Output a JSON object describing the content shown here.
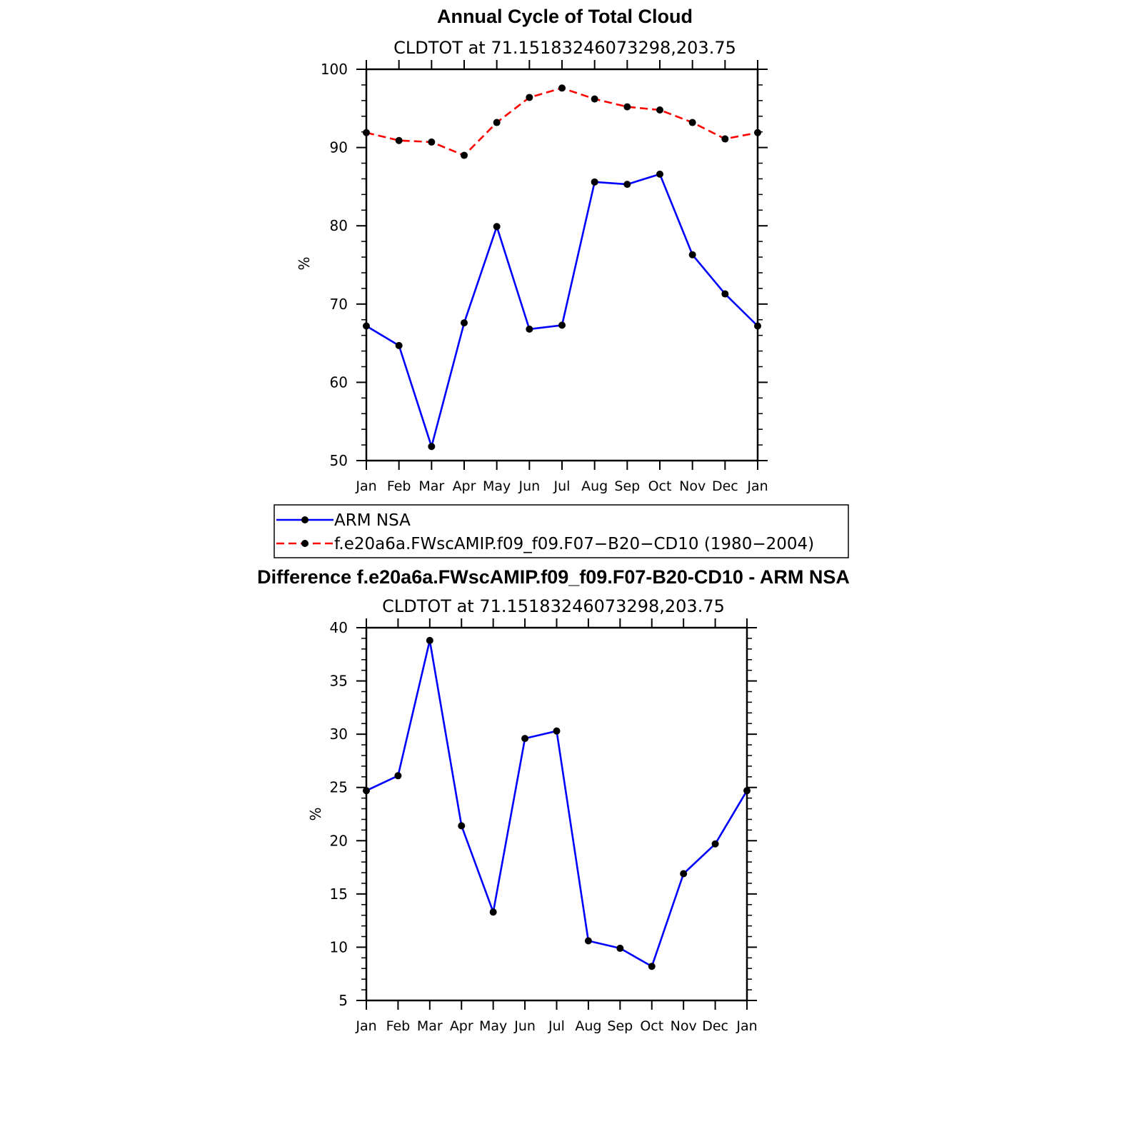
{
  "chart_data": [
    {
      "type": "line",
      "title": "Annual Cycle of Total Cloud",
      "subtitle": "CLDTOT at 71.15183246073298,203.75",
      "xlabel": "",
      "ylabel": "%",
      "ylim": [
        50,
        100
      ],
      "yticks": [
        "50",
        "60",
        "70",
        "80",
        "90",
        "100"
      ],
      "categories": [
        "Jan",
        "Feb",
        "Mar",
        "Apr",
        "May",
        "Jun",
        "Jul",
        "Aug",
        "Sep",
        "Oct",
        "Nov",
        "Dec",
        "Jan"
      ],
      "series": [
        {
          "name": "ARM NSA",
          "color": "#0000ff",
          "style": "solid",
          "values": [
            67.2,
            64.7,
            51.8,
            67.6,
            79.9,
            66.8,
            67.3,
            85.6,
            85.3,
            86.6,
            76.3,
            71.3,
            67.2
          ]
        },
        {
          "name": "f.e20a6a.FWscAMIP.f09_f09.F07-B20-CD10 (1980-2004)",
          "color": "#ff0000",
          "style": "dashed",
          "values": [
            91.9,
            90.9,
            90.7,
            89.0,
            93.2,
            96.4,
            97.6,
            96.2,
            95.2,
            94.8,
            93.2,
            91.1,
            91.9
          ]
        }
      ],
      "legend": {
        "position": "bottom",
        "entries": [
          "ARM NSA",
          "f.e20a6a.FWscAMIP.f09_f09.F07−B20−CD10 (1980−2004)"
        ]
      }
    },
    {
      "type": "line",
      "title": "Difference f.e20a6a.FWscAMIP.f09_f09.F07-B20-CD10 - ARM NSA",
      "subtitle": "CLDTOT at 71.15183246073298,203.75",
      "xlabel": "",
      "ylabel": "%",
      "ylim": [
        5,
        40
      ],
      "yticks": [
        "5",
        "10",
        "15",
        "20",
        "25",
        "30",
        "35",
        "40"
      ],
      "categories": [
        "Jan",
        "Feb",
        "Mar",
        "Apr",
        "May",
        "Jun",
        "Jul",
        "Aug",
        "Sep",
        "Oct",
        "Nov",
        "Dec",
        "Jan"
      ],
      "series": [
        {
          "name": "Difference",
          "color": "#0000ff",
          "style": "solid",
          "values": [
            24.7,
            26.1,
            38.8,
            21.4,
            13.3,
            29.6,
            30.3,
            10.6,
            9.9,
            8.2,
            16.9,
            19.7,
            24.7
          ]
        }
      ]
    }
  ]
}
